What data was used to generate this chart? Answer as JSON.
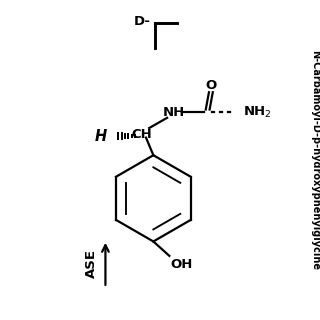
{
  "bg_color": "#ffffff",
  "title": "N-Carbamoyl-D-p-hydroxy\nphenylglycine",
  "title_rotated": "N-Carbamoyl-D-p-hydroxyphenylglycine",
  "arrow_label": "ASE",
  "d_label": "D-",
  "fig_width": 3.2,
  "fig_height": 3.2,
  "dpi": 100
}
